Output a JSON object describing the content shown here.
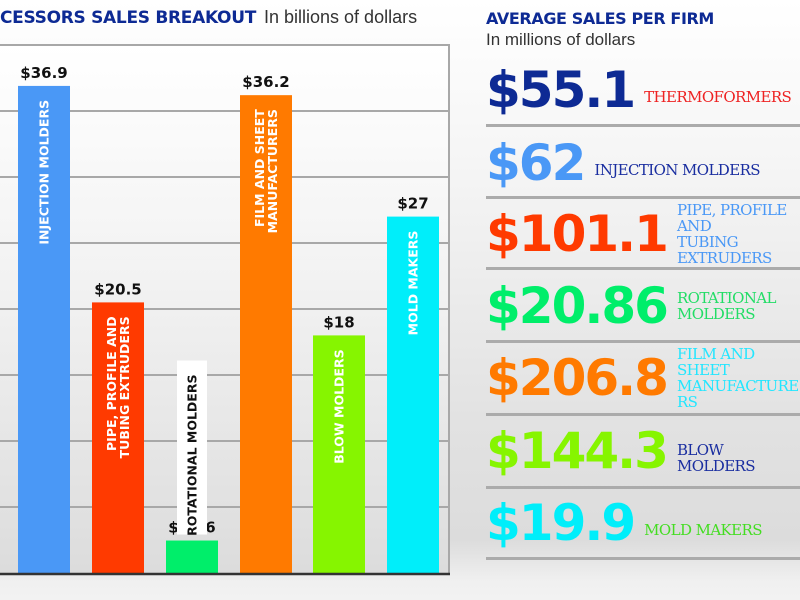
{
  "left_panel": {
    "title": "CESSORS SALES BREAKOUT",
    "subtitle": "In billions of dollars"
  },
  "chart_data": {
    "type": "bar",
    "title": "CESSORS SALES BREAKOUT",
    "subtitle": "In billions of dollars",
    "xlabel": "",
    "ylabel": "",
    "ylim": [
      0,
      40
    ],
    "grid": true,
    "grid_step": 5,
    "categories": [
      "INJECTION MOLDERS",
      "PIPE, PROFILE AND TUBING EXTRUDERS",
      "ROTATIONAL MOLDERS",
      "FILM AND SHEET MANUFACTURERS",
      "BLOW MOLDERS",
      "MOLD MAKERS"
    ],
    "category_lines": [
      [
        "INJECTION MOLDERS"
      ],
      [
        "PIPE, PROFILE AND",
        "TUBING EXTRUDERS"
      ],
      [
        "ROTATIONAL MOLDERS"
      ],
      [
        "FILM AND SHEET",
        "MANUFACTURERS"
      ],
      [
        "BLOW MOLDERS"
      ],
      [
        "MOLD MAKERS"
      ]
    ],
    "values": [
      36.9,
      20.5,
      2.46,
      36.2,
      18,
      27
    ],
    "value_labels": [
      "$36.9",
      "$20.5",
      "$2.46",
      "$36.2",
      "$18",
      "$27"
    ],
    "colors": [
      "#4a98f6",
      "#ff3a00",
      "#00ee6a",
      "#ff7a00",
      "#86f500",
      "#00eefa"
    ]
  },
  "right_panel": {
    "title": "AVERAGE SALES PER FIRM",
    "subtitle": "In millions of dollars",
    "rows": [
      {
        "value": "$55.1",
        "label_lines": [
          "THERMOFORMERS"
        ],
        "value_color": "#0d2a94",
        "label_color": "#ee2222"
      },
      {
        "value": "$62",
        "label_lines": [
          "INJECTION MOLDERS"
        ],
        "value_color": "#4a98f6",
        "label_color": "#1a2ea0"
      },
      {
        "value": "$101.1",
        "label_lines": [
          "PIPE, PROFILE AND",
          "TUBING EXTRUDERS"
        ],
        "value_color": "#ff3a00",
        "label_color": "#4a98f6"
      },
      {
        "value": "$20.86",
        "label_lines": [
          "ROTATIONAL",
          "MOLDERS"
        ],
        "value_color": "#00ee6a",
        "label_color": "#22dd66"
      },
      {
        "value": "$206.8",
        "label_lines": [
          "FILM AND SHEET",
          "MANUFACTURERS"
        ],
        "value_color": "#ff7a00",
        "label_color": "#22e6ff"
      },
      {
        "value": "$144.3",
        "label_lines": [
          "BLOW MOLDERS"
        ],
        "value_color": "#86f500",
        "label_color": "#1a2ea0"
      },
      {
        "value": "$19.9",
        "label_lines": [
          "MOLD MAKERS"
        ],
        "value_color": "#00eefa",
        "label_color": "#44dd22"
      }
    ]
  }
}
